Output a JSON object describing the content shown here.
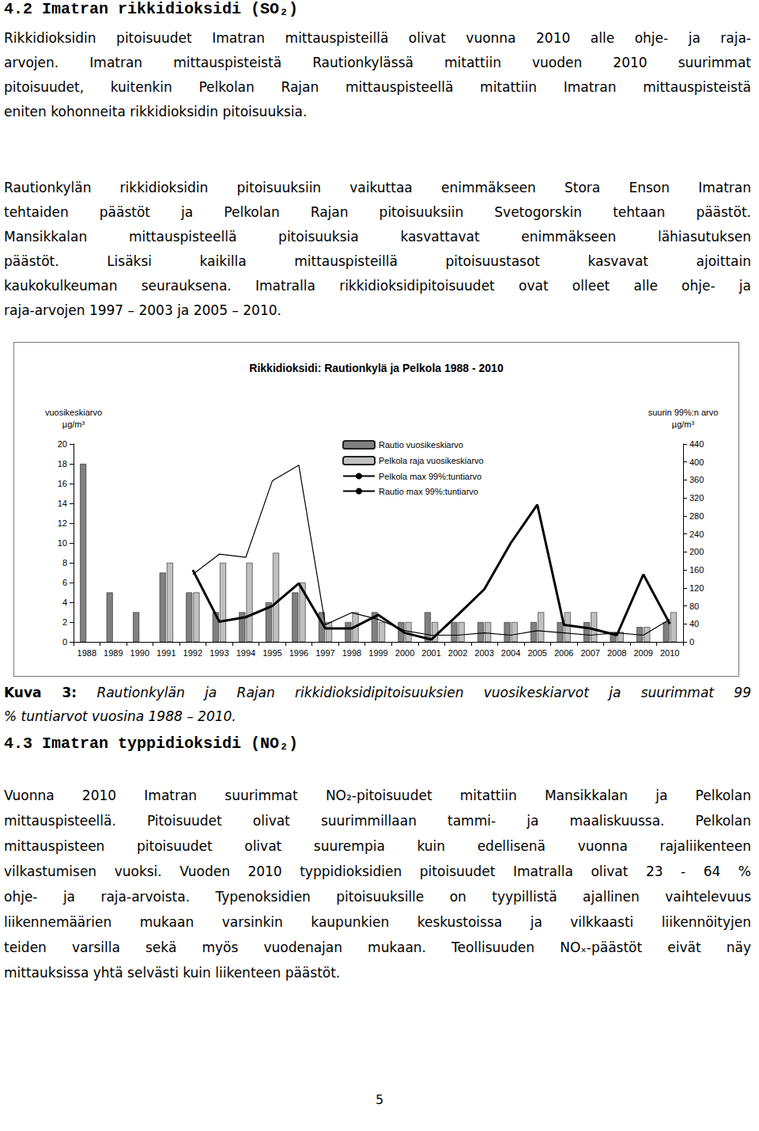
{
  "document": {
    "heading_1": "4.2 Imatran rikkidioksidi (SO₂)",
    "paragraphs_1": [
      [
        "Rikkidioksidin pitoisuudet Imatran mittauspisteillä olivat vuonna 2010 alle ohje- ja raja-",
        "arvojen. Imatran mittauspisteistä Rautionkylässä mitattiin vuoden 2010 suurimmat",
        "pitoisuudet, kuitenkin Pelkolan Rajan mittauspisteellä mitattiin Imatran mittauspisteistä",
        "eniten kohonneita rikkidioksidin pitoisuuksia."
      ],
      [
        "Rautionkylän rikkidioksidin pitoisuuksiin vaikuttaa enimmäkseen Stora Enson Imatran",
        "tehtaiden päästöt ja Pelkolan Rajan pitoisuuksiin Svetogorskin tehtaan päästöt.",
        "Mansikkalan mittauspisteellä pitoisuuksia kasvattavat enimmäkseen lähiasutuksen",
        "päästöt. Lisäksi kaikilla mittauspisteillä pitoisuustasot kasvavat ajoittain",
        "kaukokulkeuman seurauksena. Imatralla rikkidioksidipitoisuudet ovat olleet alle ohje- ja",
        "raja-arvojen 1997 – 2003 ja 2005 – 2010."
      ]
    ],
    "caption": {
      "label": "Kuva 3:",
      "lines": [
        "Rautionkylän ja Rajan rikkidioksidipitoisuuksien vuosikeskiarvot ja suurimmat 99",
        "% tuntiarvot vuosina 1988 – 2010."
      ]
    },
    "heading_2": "4.3 Imatran typpidioksidi (NO₂)",
    "paragraphs_2": [
      [
        "Vuonna 2010 Imatran suurimmat NO₂-pitoisuudet mitattiin Mansikkalan ja Pelkolan",
        "mittauspisteellä. Pitoisuudet olivat suurimmillaan tammi- ja maaliskuussa. Pelkolan",
        "mittauspisteen pitoisuudet olivat suurempia kuin edellisenä vuonna rajaliikenteen",
        "vilkastumisen vuoksi. Vuoden 2010 typpidioksidien pitoisuudet Imatralla olivat 23 - 64 %",
        "ohje- ja raja-arvoista. Typenoksidien pitoisuuksille on tyypillistä ajallinen vaihtelevuus",
        "liikennemäärien mukaan varsinkin kaupunkien keskustoissa ja vilkkaasti liikennöityjen",
        "teiden varsilla sekä myös vuodenajan mukaan. Teollisuuden NOₓ-päästöt eivät näy",
        "mittauksissa yhtä selvästi kuin liikenteen päästöt."
      ]
    ],
    "page_number": "5"
  },
  "chart_data": {
    "type": "bar",
    "title": "Rikkidioksidi: Rautionkylä ja Pelkola 1988 - 2010",
    "categories": [
      "1988",
      "1989",
      "1990",
      "1991",
      "1992",
      "1993",
      "1994",
      "1995",
      "1996",
      "1997",
      "1998",
      "1999",
      "2000",
      "2001",
      "2002",
      "2003",
      "2004",
      "2005",
      "2006",
      "2007",
      "2008",
      "2009",
      "2010"
    ],
    "y_label": "vuosikeskiarvo\nµg/m³",
    "y2_label": "suurin 99%:n arvo\nµg/m³",
    "series": [
      {
        "name": "Rautio vuosikeskiarvo",
        "type": "bar",
        "color": "#808080",
        "values": [
          18,
          5,
          3,
          7,
          5,
          3,
          3,
          4,
          5,
          3,
          2,
          3,
          2,
          3,
          2,
          2,
          2,
          2,
          2,
          2,
          1,
          1.5,
          2
        ]
      },
      {
        "name": "Pelkola raja vuosikeskiarvo",
        "type": "bar",
        "color": "#c0c0c0",
        "values": [
          null,
          null,
          null,
          8,
          5,
          8,
          8,
          9,
          6,
          2,
          3,
          2,
          2,
          2,
          2,
          2,
          2,
          3,
          3,
          3,
          1,
          1.5,
          3
        ]
      },
      {
        "name": "Pelkola max 99%:tuntiarvo",
        "type": "line",
        "color": "#000000",
        "line_style": "thin",
        "axis": "y2",
        "values": [
          null,
          null,
          null,
          null,
          150,
          195,
          188,
          358,
          393,
          38,
          65,
          50,
          25,
          15,
          15,
          20,
          15,
          25,
          20,
          15,
          20,
          15,
          50
        ]
      },
      {
        "name": "Rautio max 99%:tuntiarvo",
        "type": "line",
        "color": "#000000",
        "line_style": "thick",
        "axis": "y2",
        "values": [
          null,
          null,
          null,
          null,
          160,
          45,
          55,
          80,
          130,
          30,
          30,
          60,
          20,
          5,
          60,
          117,
          220,
          305,
          38,
          30,
          15,
          150,
          40
        ]
      }
    ],
    "ylim": [
      0,
      20
    ],
    "yticks": [
      0,
      2,
      4,
      6,
      8,
      10,
      12,
      14,
      16,
      18,
      20
    ],
    "y2lim": [
      0,
      440
    ],
    "y2ticks": [
      0,
      40,
      80,
      120,
      160,
      200,
      240,
      280,
      320,
      360,
      400,
      440
    ],
    "grid": false,
    "legend": "top"
  }
}
